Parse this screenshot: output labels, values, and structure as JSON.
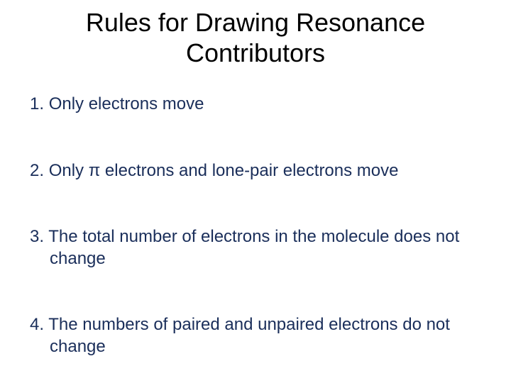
{
  "title": "Rules for Drawing Resonance Contributors",
  "title_color": "#000000",
  "title_fontsize": 36,
  "body_color": "#1a2e5a",
  "body_fontsize": 24,
  "background_color": "#ffffff",
  "items": [
    {
      "num": "1.",
      "text": "Only electrons move"
    },
    {
      "num": "2.",
      "text": "Only π electrons and lone-pair electrons move"
    },
    {
      "num": "3.",
      "text": "The total number of electrons in the molecule does not change"
    },
    {
      "num": "4.",
      "text": "The numbers of paired and unpaired electrons do not change"
    }
  ]
}
